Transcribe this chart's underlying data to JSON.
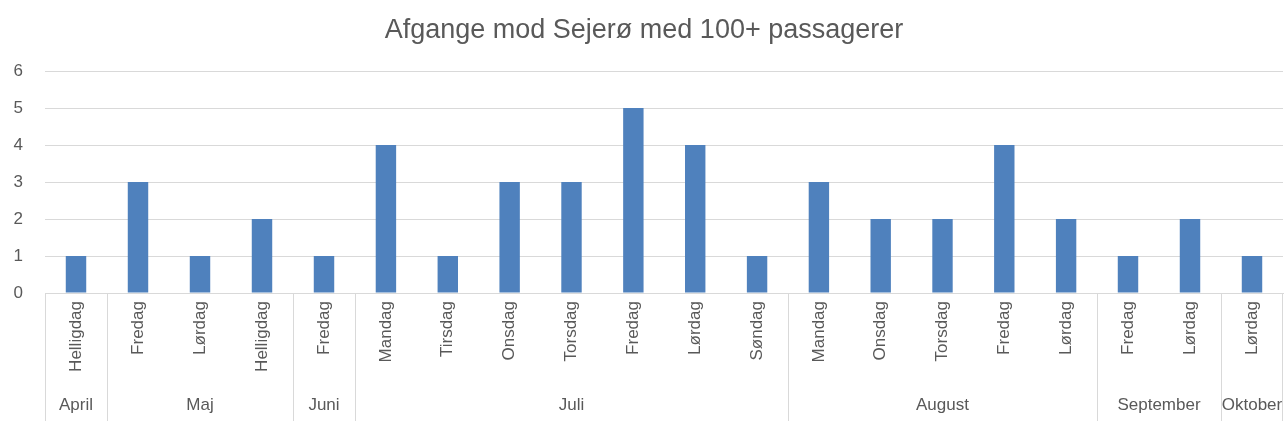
{
  "chart_data": [
    {
      "type": "bar",
      "categories": [
        "Helligdag"
      ],
      "values": [
        1
      ],
      "color": "#4f81bd",
      "ylim": [
        0,
        6
      ],
      "yticks": [
        0,
        1,
        2,
        3,
        4,
        5,
        6
      ],
      "grid": "y",
      "xlabel": "April"
    },
    {
      "type": "bar",
      "categories": [
        "Fredag",
        "Lørdag",
        "Helligdag"
      ],
      "values": [
        3,
        1,
        2
      ],
      "color": "#4f81bd",
      "ylim": [
        0,
        6
      ],
      "yticks": [
        0,
        1,
        2,
        3,
        4,
        5,
        6
      ],
      "grid": "y",
      "xlabel": "Maj",
      "tick_labels": "x"
    },
    {
      "type": "bar",
      "categories": [
        "Fredag"
      ],
      "values": [
        1
      ],
      "color": "#4f81bd",
      "ylim": [
        0,
        6
      ],
      "yticks": [
        0,
        1,
        2,
        3,
        4,
        5,
        6
      ],
      "grid": "y",
      "xlabel": "Juni",
      "tick_labels": "x"
    },
    {
      "type": "bar",
      "title": "Afgange mod Sejerø med 100+ passagerer",
      "categories": [
        "Mandag",
        "Tirsdag",
        "Onsdag",
        "Torsdag",
        "Fredag",
        "Lørdag",
        "Søndag"
      ],
      "values": [
        4,
        1,
        3,
        3,
        5,
        4,
        1
      ],
      "color": "#4f81bd",
      "ylim": [
        0,
        6
      ],
      "yticks": [
        0,
        1,
        2,
        3,
        4,
        5,
        6
      ],
      "grid": "y",
      "xlabel": "Juli",
      "tick_labels": "x"
    },
    {
      "type": "bar",
      "categories": [
        "Mandag",
        "Onsdag",
        "Torsdag",
        "Fredag",
        "Lørdag"
      ],
      "values": [
        3,
        2,
        2,
        4,
        2
      ],
      "color": "#4f81bd",
      "ylim": [
        0,
        6
      ],
      "yticks": [
        0,
        1,
        2,
        3,
        4,
        5,
        6
      ],
      "grid": "y",
      "xlabel": "August",
      "tick_labels": "x"
    },
    {
      "type": "bar",
      "categories": [
        "Fredag",
        "Lørdag"
      ],
      "values": [
        1,
        2
      ],
      "color": "#4f81bd",
      "ylim": [
        0,
        6
      ],
      "yticks": [
        0,
        1,
        2,
        3,
        4,
        5,
        6
      ],
      "grid": "y",
      "xlabel": "September",
      "tick_labels": "x"
    },
    {
      "type": "bar",
      "categories": [
        "Lørdag"
      ],
      "values": [
        1
      ],
      "color": "#4f81bd",
      "ylim": [
        0,
        6
      ],
      "yticks": [
        0,
        1,
        2,
        3,
        4,
        5,
        6
      ],
      "grid": "y",
      "xlabel": "Oktober",
      "tick_labels": "x"
    }
  ]
}
